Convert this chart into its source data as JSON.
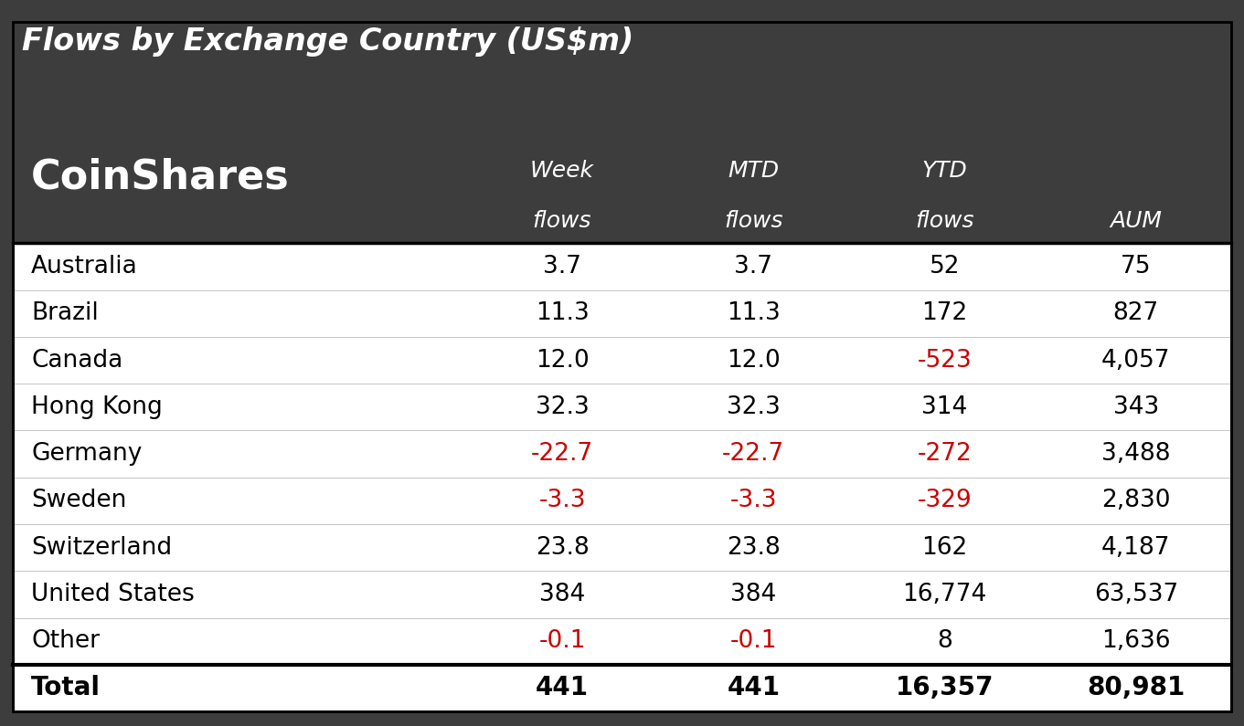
{
  "title": "Flows by Exchange Country (US$m)",
  "header_bg": "#3d3d3d",
  "header_text_color": "#ffffff",
  "row_bg_white": "#ffffff",
  "negative_color": "#cc0000",
  "positive_color": "#000000",
  "logo_text": "CoinShares",
  "col_headers_line1": [
    "Week",
    "MTD",
    "YTD",
    ""
  ],
  "col_headers_line2": [
    "flows",
    "flows",
    "flows",
    "AUM"
  ],
  "countries": [
    "Australia",
    "Brazil",
    "Canada",
    "Hong Kong",
    "Germany",
    "Sweden",
    "Switzerland",
    "United States",
    "Other"
  ],
  "week_flows": [
    "3.7",
    "11.3",
    "12.0",
    "32.3",
    "-22.7",
    "-3.3",
    "23.8",
    "384",
    "-0.1"
  ],
  "mtd_flows": [
    "3.7",
    "11.3",
    "12.0",
    "32.3",
    "-22.7",
    "-3.3",
    "23.8",
    "384",
    "-0.1"
  ],
  "ytd_flows": [
    "52",
    "172",
    "-523",
    "314",
    "-272",
    "-329",
    "162",
    "16,774",
    "8"
  ],
  "aum": [
    "75",
    "827",
    "4,057",
    "343",
    "3,488",
    "2,830",
    "4,187",
    "63,537",
    "1,636"
  ],
  "total_label": "Total",
  "total_week": "441",
  "total_mtd": "441",
  "total_ytd": "16,357",
  "total_aum": "80,981",
  "week_neg": [
    false,
    false,
    false,
    false,
    true,
    true,
    false,
    false,
    true
  ],
  "mtd_neg": [
    false,
    false,
    false,
    false,
    true,
    true,
    false,
    false,
    true
  ],
  "ytd_neg": [
    false,
    false,
    true,
    false,
    true,
    true,
    false,
    false,
    false
  ],
  "aum_neg": [
    false,
    false,
    false,
    false,
    false,
    false,
    false,
    false,
    false
  ]
}
